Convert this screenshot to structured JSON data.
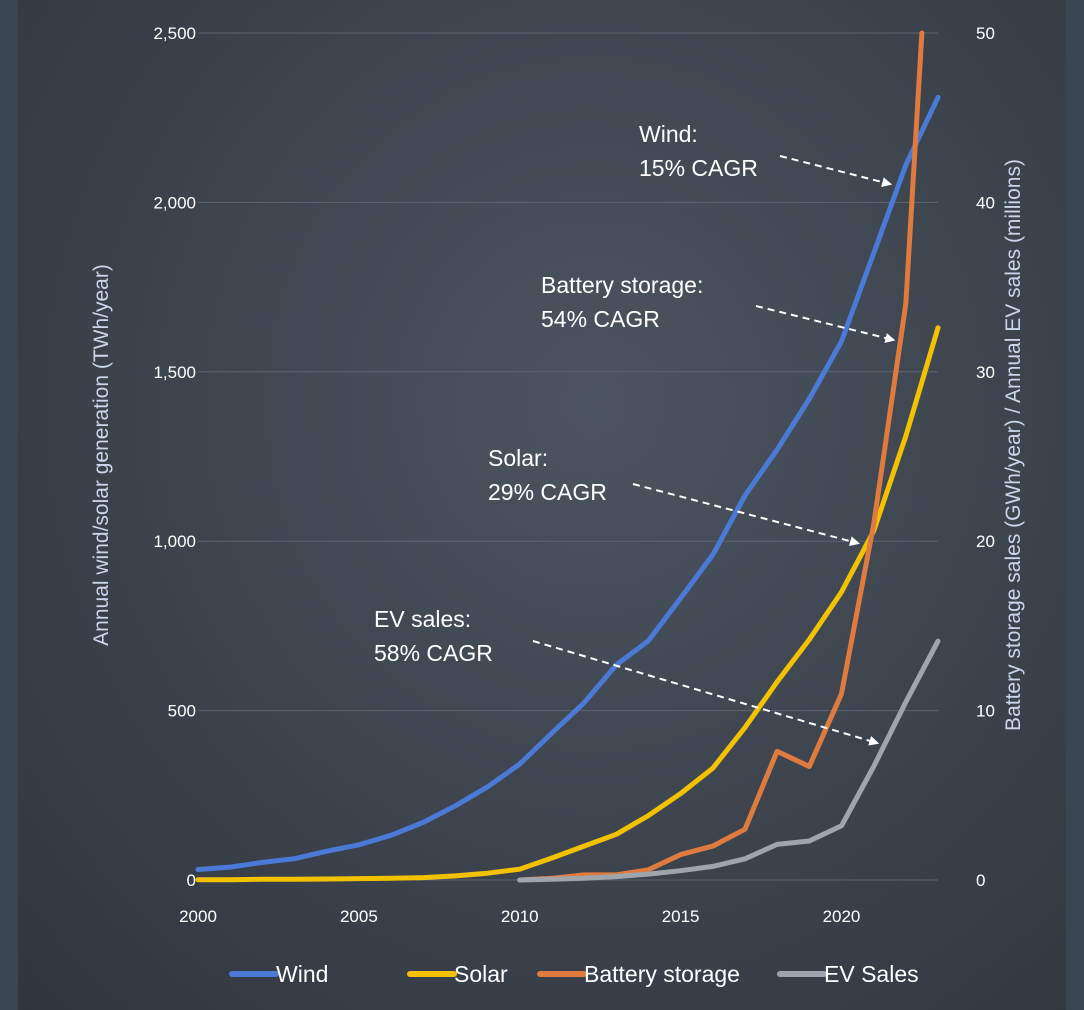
{
  "chart_data": {
    "type": "line",
    "title": "",
    "xlabel": "",
    "ylabel_left": "Annual wind/solar generation (TWh/year)",
    "ylabel_right": "Battery storage sales (GWh/year) / Annual EV sales (millions)",
    "xlim": [
      2000,
      2023
    ],
    "ylim_left": [
      0,
      2500
    ],
    "ylim_right": [
      0,
      50
    ],
    "x_ticks": [
      "2000",
      "2005",
      "2010",
      "2015",
      "2020"
    ],
    "y_ticks_left": [
      "0",
      "500",
      "1,000",
      "1,500",
      "2,000",
      "2,500"
    ],
    "y_ticks_right": [
      "0",
      "10",
      "20",
      "30",
      "40",
      "50"
    ],
    "grid": true,
    "legend_position": "bottom",
    "series": [
      {
        "name": "Wind",
        "axis": "left",
        "color": "#4a7ad6",
        "x": [
          2000,
          2001,
          2002,
          2003,
          2004,
          2005,
          2006,
          2007,
          2008,
          2009,
          2010,
          2011,
          2012,
          2013,
          2014,
          2015,
          2016,
          2017,
          2018,
          2019,
          2020,
          2021,
          2022,
          2023
        ],
        "values": [
          31,
          38,
          52,
          63,
          85,
          104,
          132,
          170,
          219,
          275,
          342,
          434,
          523,
          635,
          706,
          832,
          960,
          1135,
          1270,
          1420,
          1590,
          1850,
          2110,
          2310
        ]
      },
      {
        "name": "Solar",
        "axis": "left",
        "color": "#f2c200",
        "x": [
          2000,
          2001,
          2002,
          2003,
          2004,
          2005,
          2006,
          2007,
          2008,
          2009,
          2010,
          2011,
          2012,
          2013,
          2014,
          2015,
          2016,
          2017,
          2018,
          2019,
          2020,
          2021,
          2022,
          2023
        ],
        "values": [
          1,
          1,
          2,
          2,
          3,
          4,
          5,
          7,
          12,
          20,
          32,
          65,
          100,
          135,
          190,
          255,
          330,
          450,
          585,
          710,
          850,
          1030,
          1310,
          1630
        ]
      },
      {
        "name": "Battery storage",
        "axis": "right",
        "color": "#e07b3f",
        "x": [
          2010,
          2011,
          2012,
          2013,
          2014,
          2015,
          2016,
          2017,
          2018,
          2019,
          2020,
          2021,
          2022,
          2022.5
        ],
        "values": [
          0,
          0.1,
          0.3,
          0.3,
          0.6,
          1.5,
          2,
          3,
          7.6,
          6.7,
          11,
          21,
          34,
          50
        ]
      },
      {
        "name": "EV Sales",
        "axis": "right",
        "color": "#9fa5ad",
        "x": [
          2010,
          2011,
          2012,
          2013,
          2014,
          2015,
          2016,
          2017,
          2018,
          2019,
          2020,
          2021,
          2022,
          2023
        ],
        "values": [
          0,
          0.05,
          0.1,
          0.2,
          0.35,
          0.55,
          0.8,
          1.25,
          2.1,
          2.3,
          3.2,
          6.7,
          10.5,
          14.1
        ]
      }
    ],
    "annotations": [
      {
        "lines": [
          "Wind:",
          "15% CAGR"
        ],
        "target_x": 2021.7,
        "target_axis": "left",
        "target_y": 2060
      },
      {
        "lines": [
          "Battery storage:",
          "54% CAGR"
        ],
        "target_x": 2021.8,
        "target_axis": "right",
        "target_y": 32
      },
      {
        "lines": [
          "Solar:",
          "29% CAGR"
        ],
        "target_x": 2020.7,
        "target_axis": "left",
        "target_y": 1000
      },
      {
        "lines": [
          "EV sales:",
          "58% CAGR"
        ],
        "target_x": 2021.3,
        "target_axis": "right",
        "target_y": 8.2
      }
    ]
  }
}
